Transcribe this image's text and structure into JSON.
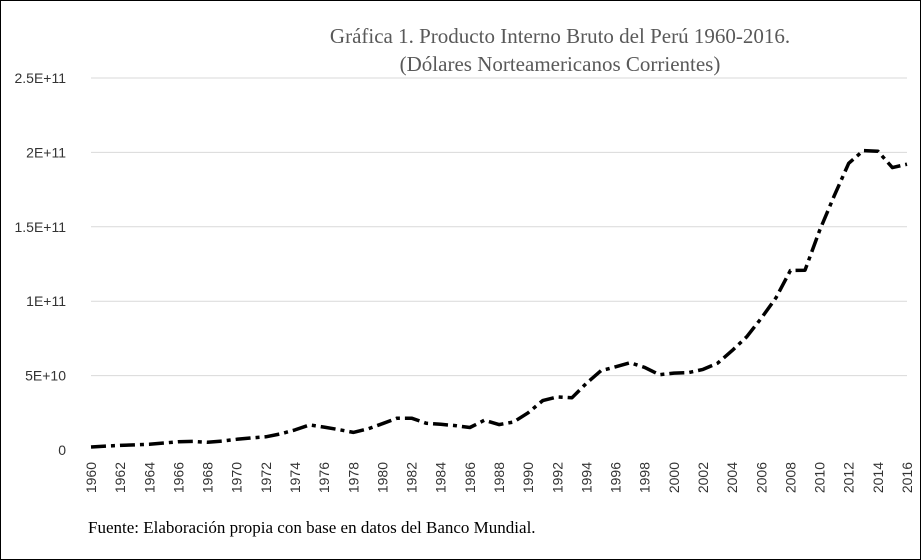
{
  "chart_data": {
    "type": "line",
    "title": "Gráfica 1. Producto Interno Bruto del Perú 1960-2016.",
    "subtitle": "(Dólares Norteamericanos Corrientes)",
    "xlabel": "",
    "ylabel": "",
    "ylim": [
      0,
      250000000000
    ],
    "xlim": [
      1960,
      2016
    ],
    "y_ticks": [
      {
        "value": 0,
        "label": "0"
      },
      {
        "value": 50000000000,
        "label": "5E+10"
      },
      {
        "value": 100000000000,
        "label": "1E+11"
      },
      {
        "value": 150000000000,
        "label": "1.5E+11"
      },
      {
        "value": 200000000000,
        "label": "2E+11"
      },
      {
        "value": 250000000000,
        "label": "2.5E+11"
      }
    ],
    "x_ticks": [
      "1960",
      "1962",
      "1964",
      "1966",
      "1968",
      "1970",
      "1972",
      "1974",
      "1976",
      "1978",
      "1980",
      "1982",
      "1984",
      "1986",
      "1988",
      "1990",
      "1992",
      "1994",
      "1996",
      "1998",
      "2000",
      "2002",
      "2004",
      "2006",
      "2008",
      "2010",
      "2012",
      "2014",
      "2016"
    ],
    "grid": true,
    "legend": "none",
    "line_color": "#000000",
    "series": [
      {
        "x": [
          1960,
          1961,
          1962,
          1963,
          1964,
          1965,
          1966,
          1967,
          1968,
          1969,
          1970,
          1971,
          1972,
          1973,
          1974,
          1975,
          1976,
          1977,
          1978,
          1979,
          1980,
          1981,
          1982,
          1983,
          1984,
          1985,
          1986,
          1987,
          1988,
          1989,
          1990,
          1991,
          1992,
          1993,
          1994,
          1995,
          1996,
          1997,
          1998,
          1999,
          2000,
          2001,
          2002,
          2003,
          2004,
          2005,
          2006,
          2007,
          2008,
          2009,
          2010,
          2011,
          2012,
          2013,
          2014,
          2015,
          2016
        ],
        "values": [
          2000000000,
          2600000000,
          3100000000,
          3400000000,
          3800000000,
          4700000000,
          5600000000,
          5800000000,
          5200000000,
          6000000000,
          7200000000,
          8100000000,
          8900000000,
          10800000000,
          13500000000,
          16900000000,
          15400000000,
          13700000000,
          11800000000,
          14200000000,
          17700000000,
          21400000000,
          21400000000,
          18000000000,
          17300000000,
          16400000000,
          15100000000,
          20000000000,
          17100000000,
          18800000000,
          25000000000,
          33200000000,
          35700000000,
          35100000000,
          44800000000,
          53300000000,
          55900000000,
          58700000000,
          55500000000,
          50600000000,
          51700000000,
          52000000000,
          54200000000,
          58300000000,
          66800000000,
          76100000000,
          88600000000,
          102200000000,
          120600000000,
          120800000000,
          147500000000,
          170600000000,
          192700000000,
          201200000000,
          200800000000,
          189800000000,
          192100000000
        ]
      }
    ]
  },
  "source_note": "Fuente: Elaboración propia con base en datos del Banco Mundial."
}
